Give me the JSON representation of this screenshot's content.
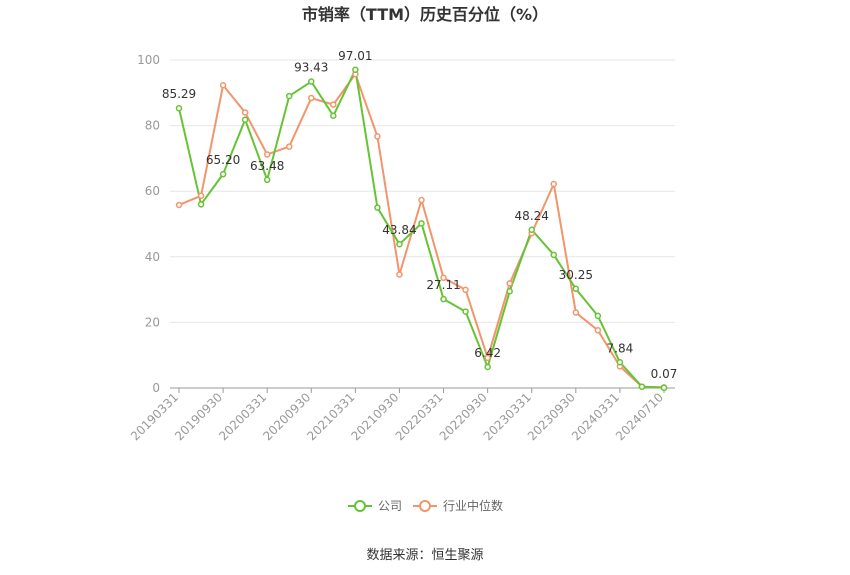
{
  "chart_data": {
    "type": "line",
    "title": "市销率（TTM）历史百分位（%）",
    "xlabel": "",
    "ylabel": "",
    "ylim": [
      0,
      100
    ],
    "yticks": [
      "0",
      "20",
      "40",
      "60",
      "80",
      "100"
    ],
    "x": [
      "20190331",
      "20190630",
      "20190930",
      "20191231",
      "20200331",
      "20200630",
      "20200930",
      "20201231",
      "20210331",
      "20210630",
      "20210930",
      "20211231",
      "20220331",
      "20220630",
      "20220930",
      "20221231",
      "20230331",
      "20230630",
      "20230930",
      "20231231",
      "20240331",
      "20240630",
      "20240710"
    ],
    "xtick_labels": [
      "20190331",
      "20190930",
      "20200331",
      "20200930",
      "20210331",
      "20210930",
      "20220331",
      "20220930",
      "20230331",
      "20230930",
      "20240331",
      "20240710"
    ],
    "series": [
      {
        "name": "公司",
        "color": "#66c334",
        "values": [
          85.29,
          56.0,
          65.2,
          81.8,
          63.48,
          89.0,
          93.43,
          83.0,
          97.01,
          55.0,
          43.84,
          50.2,
          27.11,
          23.3,
          6.42,
          29.5,
          48.24,
          40.6,
          30.25,
          22.0,
          7.84,
          0.4,
          0.07
        ],
        "data_labels": [
          "85.29",
          "",
          "65.20",
          "",
          "63.48",
          "",
          "93.43",
          "",
          "97.01",
          "",
          "43.84",
          "",
          "27.11",
          "",
          "6.42",
          "",
          "48.24",
          "",
          "30.25",
          "",
          "7.84",
          "",
          "0.07"
        ]
      },
      {
        "name": "行业中位数",
        "color": "#f2956b",
        "values": [
          55.8,
          58.6,
          92.3,
          84.0,
          71.2,
          73.6,
          88.4,
          86.4,
          95.7,
          76.7,
          34.6,
          57.3,
          33.6,
          29.9,
          9.2,
          31.9,
          47.2,
          62.2,
          23.0,
          17.6,
          6.6,
          0.4,
          0.2
        ]
      }
    ],
    "legend": {
      "position": "bottom",
      "items": [
        "公司",
        "行业中位数"
      ]
    },
    "grid": true
  },
  "source": "数据来源：恒生聚源"
}
